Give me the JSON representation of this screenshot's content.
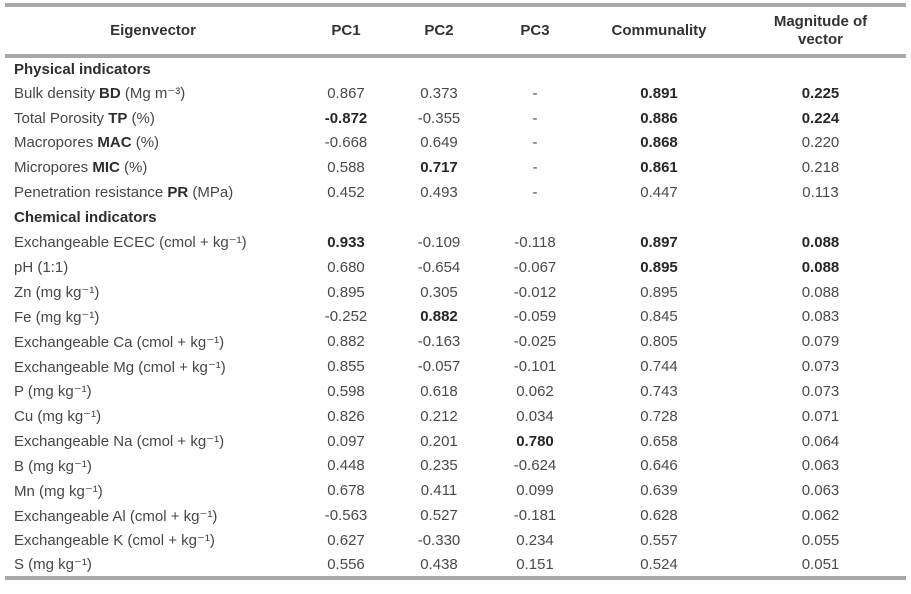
{
  "table": {
    "columns": [
      {
        "key": "eigenvector",
        "label": "Eigenvector"
      },
      {
        "key": "pc1",
        "label": "PC1"
      },
      {
        "key": "pc2",
        "label": "PC2"
      },
      {
        "key": "pc3",
        "label": "PC3"
      },
      {
        "key": "communality",
        "label": "Communality"
      },
      {
        "key": "magnitude",
        "label": "Magnitude of vector"
      }
    ],
    "sections": [
      {
        "title": "Physical indicators",
        "rows": [
          {
            "label": {
              "pre": "Bulk density ",
              "bold": "BD",
              "post": " (Mg m⁻³)"
            },
            "cells": [
              {
                "v": "0.867",
                "b": false
              },
              {
                "v": "0.373",
                "b": false
              },
              {
                "v": "-",
                "b": false
              },
              {
                "v": "0.891",
                "b": true
              },
              {
                "v": "0.225",
                "b": true
              }
            ]
          },
          {
            "label": {
              "pre": "Total Porosity ",
              "bold": "TP",
              "post": " (%)"
            },
            "cells": [
              {
                "v": "-0.872",
                "b": true
              },
              {
                "v": "-0.355",
                "b": false
              },
              {
                "v": "-",
                "b": false
              },
              {
                "v": "0.886",
                "b": true
              },
              {
                "v": "0.224",
                "b": true
              }
            ]
          },
          {
            "label": {
              "pre": "Macropores ",
              "bold": "MAC",
              "post": " (%)"
            },
            "cells": [
              {
                "v": "-0.668",
                "b": false
              },
              {
                "v": "0.649",
                "b": false
              },
              {
                "v": "-",
                "b": false
              },
              {
                "v": "0.868",
                "b": true
              },
              {
                "v": "0.220",
                "b": false
              }
            ]
          },
          {
            "label": {
              "pre": "Micropores ",
              "bold": "MIC",
              "post": " (%)"
            },
            "cells": [
              {
                "v": "0.588",
                "b": false
              },
              {
                "v": "0.717",
                "b": true
              },
              {
                "v": "-",
                "b": false
              },
              {
                "v": "0.861",
                "b": true
              },
              {
                "v": "0.218",
                "b": false
              }
            ]
          },
          {
            "label": {
              "pre": "Penetration resistance ",
              "bold": "PR",
              "post": " (MPa)"
            },
            "cells": [
              {
                "v": "0.452",
                "b": false
              },
              {
                "v": "0.493",
                "b": false
              },
              {
                "v": "-",
                "b": false
              },
              {
                "v": "0.447",
                "b": false
              },
              {
                "v": "0.113",
                "b": false
              }
            ]
          }
        ]
      },
      {
        "title": "Chemical indicators",
        "rows": [
          {
            "label": {
              "pre": "Exchangeable ECEC (cmol + kg⁻¹)",
              "bold": "",
              "post": ""
            },
            "cells": [
              {
                "v": "0.933",
                "b": true
              },
              {
                "v": "-0.109",
                "b": false
              },
              {
                "v": "-0.118",
                "b": false
              },
              {
                "v": "0.897",
                "b": true
              },
              {
                "v": "0.088",
                "b": true
              }
            ]
          },
          {
            "label": {
              "pre": "pH (1:1)",
              "bold": "",
              "post": ""
            },
            "cells": [
              {
                "v": "0.680",
                "b": false
              },
              {
                "v": "-0.654",
                "b": false
              },
              {
                "v": "-0.067",
                "b": false
              },
              {
                "v": "0.895",
                "b": true
              },
              {
                "v": "0.088",
                "b": true
              }
            ]
          },
          {
            "label": {
              "pre": "Zn (mg kg⁻¹)",
              "bold": "",
              "post": ""
            },
            "cells": [
              {
                "v": "0.895",
                "b": false
              },
              {
                "v": "0.305",
                "b": false
              },
              {
                "v": "-0.012",
                "b": false
              },
              {
                "v": "0.895",
                "b": false
              },
              {
                "v": "0.088",
                "b": false
              }
            ]
          },
          {
            "label": {
              "pre": "Fe (mg kg⁻¹)",
              "bold": "",
              "post": ""
            },
            "cells": [
              {
                "v": "-0.252",
                "b": false
              },
              {
                "v": "0.882",
                "b": true
              },
              {
                "v": "-0.059",
                "b": false
              },
              {
                "v": "0.845",
                "b": false
              },
              {
                "v": "0.083",
                "b": false
              }
            ]
          },
          {
            "label": {
              "pre": "Exchangeable Ca (cmol + kg⁻¹)",
              "bold": "",
              "post": ""
            },
            "cells": [
              {
                "v": "0.882",
                "b": false
              },
              {
                "v": "-0.163",
                "b": false
              },
              {
                "v": "-0.025",
                "b": false
              },
              {
                "v": "0.805",
                "b": false
              },
              {
                "v": "0.079",
                "b": false
              }
            ]
          },
          {
            "label": {
              "pre": "Exchangeable Mg (cmol + kg⁻¹)",
              "bold": "",
              "post": ""
            },
            "cells": [
              {
                "v": "0.855",
                "b": false
              },
              {
                "v": "-0.057",
                "b": false
              },
              {
                "v": "-0.101",
                "b": false
              },
              {
                "v": "0.744",
                "b": false
              },
              {
                "v": "0.073",
                "b": false
              }
            ]
          },
          {
            "label": {
              "pre": "P (mg kg⁻¹)",
              "bold": "",
              "post": ""
            },
            "cells": [
              {
                "v": "0.598",
                "b": false
              },
              {
                "v": "0.618",
                "b": false
              },
              {
                "v": "0.062",
                "b": false
              },
              {
                "v": "0.743",
                "b": false
              },
              {
                "v": "0.073",
                "b": false
              }
            ]
          },
          {
            "label": {
              "pre": "Cu (mg kg⁻¹)",
              "bold": "",
              "post": ""
            },
            "cells": [
              {
                "v": "0.826",
                "b": false
              },
              {
                "v": "0.212",
                "b": false
              },
              {
                "v": "0.034",
                "b": false
              },
              {
                "v": "0.728",
                "b": false
              },
              {
                "v": "0.071",
                "b": false
              }
            ]
          },
          {
            "label": {
              "pre": "Exchangeable Na (cmol + kg⁻¹)",
              "bold": "",
              "post": ""
            },
            "cells": [
              {
                "v": "0.097",
                "b": false
              },
              {
                "v": "0.201",
                "b": false
              },
              {
                "v": "0.780",
                "b": true
              },
              {
                "v": "0.658",
                "b": false
              },
              {
                "v": "0.064",
                "b": false
              }
            ]
          },
          {
            "label": {
              "pre": "B (mg kg⁻¹)",
              "bold": "",
              "post": ""
            },
            "cells": [
              {
                "v": "0.448",
                "b": false
              },
              {
                "v": "0.235",
                "b": false
              },
              {
                "v": "-0.624",
                "b": false
              },
              {
                "v": "0.646",
                "b": false
              },
              {
                "v": "0.063",
                "b": false
              }
            ]
          },
          {
            "label": {
              "pre": "Mn (mg kg⁻¹)",
              "bold": "",
              "post": ""
            },
            "cells": [
              {
                "v": "0.678",
                "b": false
              },
              {
                "v": "0.411",
                "b": false
              },
              {
                "v": "0.099",
                "b": false
              },
              {
                "v": "0.639",
                "b": false
              },
              {
                "v": "0.063",
                "b": false
              }
            ]
          },
          {
            "label": {
              "pre": "Exchangeable Al (cmol + kg⁻¹)",
              "bold": "",
              "post": ""
            },
            "cells": [
              {
                "v": "-0.563",
                "b": false
              },
              {
                "v": "0.527",
                "b": false
              },
              {
                "v": "-0.181",
                "b": false
              },
              {
                "v": "0.628",
                "b": false
              },
              {
                "v": "0.062",
                "b": false
              }
            ]
          },
          {
            "label": {
              "pre": "Exchangeable K (cmol + kg⁻¹)",
              "bold": "",
              "post": ""
            },
            "cells": [
              {
                "v": "0.627",
                "b": false
              },
              {
                "v": "-0.330",
                "b": false
              },
              {
                "v": "0.234",
                "b": false
              },
              {
                "v": "0.557",
                "b": false
              },
              {
                "v": "0.055",
                "b": false
              }
            ]
          },
          {
            "label": {
              "pre": "S (mg kg⁻¹)",
              "bold": "",
              "post": ""
            },
            "cells": [
              {
                "v": "0.556",
                "b": false
              },
              {
                "v": "0.438",
                "b": false
              },
              {
                "v": "0.151",
                "b": false
              },
              {
                "v": "0.524",
                "b": false
              },
              {
                "v": "0.051",
                "b": false
              }
            ]
          }
        ]
      }
    ]
  }
}
